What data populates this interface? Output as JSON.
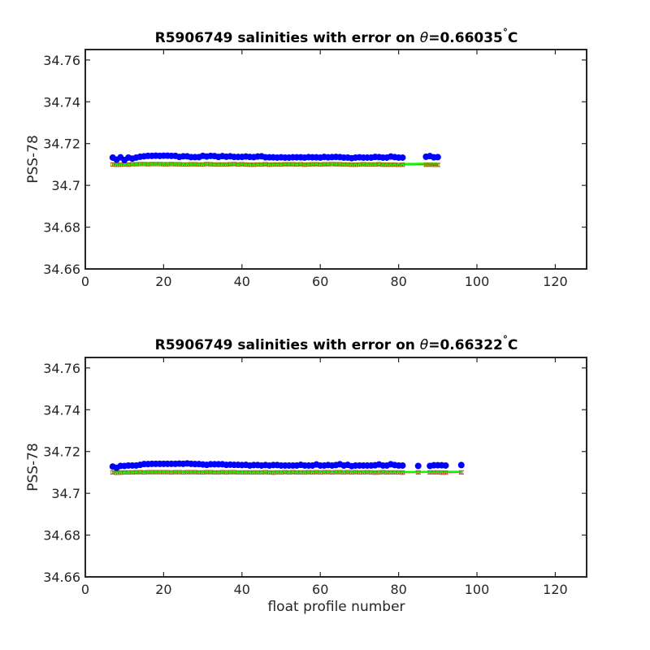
{
  "chart_data": [
    {
      "type": "scatter",
      "title_prefix": "R5906749 salinities with error on ",
      "title_theta": "θ",
      "title_value": "=0.66035",
      "title_degree": "°",
      "title_unit": "C",
      "xlabel": "",
      "ylabel": "PSS-78",
      "xlim": [
        0,
        128
      ],
      "ylim": [
        34.66,
        34.765
      ],
      "xticks": [
        "0",
        "20",
        "40",
        "60",
        "80",
        "100",
        "120"
      ],
      "yticks": [
        "34.66",
        "34.68",
        "34.7",
        "34.72",
        "34.74",
        "34.76"
      ],
      "grid": false,
      "colors": {
        "float": "#0000ff",
        "mapped": "#ff0000",
        "fit": "#00ff00",
        "errorbar": "#aa0000"
      },
      "float_x": [
        7,
        8,
        9,
        10,
        11,
        12,
        13,
        14,
        15,
        16,
        17,
        18,
        19,
        20,
        21,
        22,
        23,
        24,
        25,
        26,
        27,
        28,
        29,
        30,
        31,
        32,
        33,
        34,
        35,
        36,
        37,
        38,
        39,
        40,
        41,
        42,
        43,
        44,
        45,
        46,
        47,
        48,
        49,
        50,
        51,
        52,
        53,
        54,
        55,
        56,
        57,
        58,
        59,
        60,
        61,
        62,
        63,
        64,
        65,
        66,
        67,
        68,
        69,
        70,
        71,
        72,
        73,
        74,
        75,
        76,
        77,
        78,
        79,
        80,
        81,
        87,
        88,
        89,
        90
      ],
      "float_y": [
        34.7133,
        34.7123,
        34.7134,
        34.7121,
        34.7133,
        34.7128,
        34.7133,
        34.7137,
        34.7139,
        34.7141,
        34.7141,
        34.7142,
        34.7141,
        34.7142,
        34.7142,
        34.7141,
        34.7141,
        34.7136,
        34.7139,
        34.7139,
        34.7135,
        34.7135,
        34.7135,
        34.7141,
        34.7138,
        34.7141,
        34.714,
        34.7136,
        34.714,
        34.7137,
        34.7139,
        34.7136,
        34.7136,
        34.7136,
        34.7138,
        34.7136,
        34.7135,
        34.7138,
        34.7139,
        34.7134,
        34.7134,
        34.7134,
        34.7133,
        34.7134,
        34.7133,
        34.7133,
        34.7134,
        34.7134,
        34.7134,
        34.7133,
        34.7135,
        34.7134,
        34.7134,
        34.7133,
        34.7136,
        34.7134,
        34.7135,
        34.7136,
        34.7135,
        34.7133,
        34.7133,
        34.713,
        34.7133,
        34.7134,
        34.7133,
        34.7133,
        34.7133,
        34.7136,
        34.7135,
        34.7133,
        34.7133,
        34.7138,
        34.7135,
        34.7133,
        34.7133,
        34.7137,
        34.714,
        34.7134,
        34.7135
      ],
      "mapped_x": [
        7,
        8,
        9,
        10,
        11,
        12,
        13,
        14,
        15,
        16,
        17,
        18,
        19,
        20,
        21,
        22,
        23,
        24,
        25,
        26,
        27,
        28,
        29,
        30,
        31,
        32,
        33,
        34,
        35,
        36,
        37,
        38,
        39,
        40,
        41,
        42,
        43,
        44,
        45,
        46,
        47,
        48,
        49,
        50,
        51,
        52,
        53,
        54,
        55,
        56,
        57,
        58,
        59,
        60,
        61,
        62,
        63,
        64,
        65,
        66,
        67,
        68,
        69,
        70,
        71,
        72,
        73,
        74,
        75,
        76,
        77,
        78,
        79,
        80,
        81,
        87,
        88,
        89,
        90
      ],
      "mapped_y": [
        34.71,
        34.7098,
        34.7099,
        34.71,
        34.7099,
        34.7101,
        34.7101,
        34.7102,
        34.7102,
        34.7101,
        34.7102,
        34.7102,
        34.7102,
        34.7101,
        34.7101,
        34.7102,
        34.7101,
        34.7101,
        34.71,
        34.71,
        34.7101,
        34.7101,
        34.71,
        34.71,
        34.7102,
        34.7101,
        34.71,
        34.71,
        34.71,
        34.71,
        34.7101,
        34.7102,
        34.71,
        34.7101,
        34.71,
        34.7099,
        34.7099,
        34.71,
        34.71,
        34.7101,
        34.7099,
        34.71,
        34.71,
        34.71,
        34.7101,
        34.7101,
        34.7101,
        34.71,
        34.7101,
        34.7099,
        34.71,
        34.7101,
        34.7101,
        34.71,
        34.7101,
        34.7101,
        34.7102,
        34.7101,
        34.7101,
        34.71,
        34.71,
        34.7099,
        34.7099,
        34.71,
        34.7101,
        34.71,
        34.71,
        34.71,
        34.7101,
        34.7099,
        34.7099,
        34.7099,
        34.7099,
        34.7098,
        34.7099,
        34.7099,
        34.7099,
        34.7098,
        34.7098
      ],
      "mapped_err": 0.0008,
      "fit_x": [
        7,
        20,
        40,
        60,
        81,
        87,
        90
      ],
      "fit_y": [
        34.7101,
        34.7103,
        34.7101,
        34.7101,
        34.7102,
        34.7104,
        34.7104
      ]
    },
    {
      "type": "scatter",
      "title_prefix": "R5906749 salinities with error on ",
      "title_theta": "θ",
      "title_value": "=0.66322",
      "title_degree": "°",
      "title_unit": "C",
      "xlabel": "float profile number",
      "ylabel": "PSS-78",
      "xlim": [
        0,
        128
      ],
      "ylim": [
        34.66,
        34.765
      ],
      "xticks": [
        "0",
        "20",
        "40",
        "60",
        "80",
        "100",
        "120"
      ],
      "yticks": [
        "34.66",
        "34.68",
        "34.7",
        "34.72",
        "34.74",
        "34.76"
      ],
      "grid": false,
      "colors": {
        "float": "#0000ff",
        "mapped": "#ff0000",
        "fit": "#00ff00",
        "errorbar": "#aa0000"
      },
      "float_x": [
        7,
        8,
        9,
        10,
        11,
        12,
        13,
        14,
        15,
        16,
        17,
        18,
        19,
        20,
        21,
        22,
        23,
        24,
        25,
        26,
        27,
        28,
        29,
        30,
        31,
        32,
        33,
        34,
        35,
        36,
        37,
        38,
        39,
        40,
        41,
        42,
        43,
        44,
        45,
        46,
        47,
        48,
        49,
        50,
        51,
        52,
        53,
        54,
        55,
        56,
        57,
        58,
        59,
        60,
        61,
        62,
        63,
        64,
        65,
        66,
        67,
        68,
        69,
        70,
        71,
        72,
        73,
        74,
        75,
        76,
        77,
        78,
        79,
        80,
        81,
        85,
        88,
        89,
        90,
        91,
        92,
        96
      ],
      "float_y": [
        34.7128,
        34.7122,
        34.7131,
        34.7131,
        34.7133,
        34.7133,
        34.7133,
        34.7136,
        34.714,
        34.714,
        34.7141,
        34.7141,
        34.7141,
        34.7141,
        34.7141,
        34.7141,
        34.7141,
        34.7142,
        34.7141,
        34.7143,
        34.7141,
        34.714,
        34.714,
        34.7138,
        34.7136,
        34.7139,
        34.7139,
        34.7139,
        34.7139,
        34.7136,
        34.7137,
        34.7136,
        34.7136,
        34.7135,
        34.7136,
        34.7133,
        34.7135,
        34.7135,
        34.7133,
        34.7135,
        34.7133,
        34.7135,
        34.7135,
        34.7133,
        34.7133,
        34.7133,
        34.7133,
        34.7133,
        34.7136,
        34.7133,
        34.7133,
        34.7133,
        34.7138,
        34.7133,
        34.7133,
        34.7135,
        34.7133,
        34.7135,
        34.7139,
        34.7133,
        34.7136,
        34.713,
        34.7133,
        34.7133,
        34.7133,
        34.7133,
        34.7133,
        34.7134,
        34.7138,
        34.7133,
        34.7133,
        34.7139,
        34.7135,
        34.7133,
        34.7133,
        34.7131,
        34.7131,
        34.7134,
        34.7134,
        34.7134,
        34.7133,
        34.7135
      ],
      "mapped_x": [
        7,
        8,
        9,
        10,
        11,
        12,
        13,
        14,
        15,
        16,
        17,
        18,
        19,
        20,
        21,
        22,
        23,
        24,
        25,
        26,
        27,
        28,
        29,
        30,
        31,
        32,
        33,
        34,
        35,
        36,
        37,
        38,
        39,
        40,
        41,
        42,
        43,
        44,
        45,
        46,
        47,
        48,
        49,
        50,
        51,
        52,
        53,
        54,
        55,
        56,
        57,
        58,
        59,
        60,
        61,
        62,
        63,
        64,
        65,
        66,
        67,
        68,
        69,
        70,
        71,
        72,
        73,
        74,
        75,
        76,
        77,
        78,
        79,
        80,
        81,
        85,
        88,
        89,
        90,
        91,
        92,
        96
      ],
      "mapped_y": [
        34.71,
        34.7098,
        34.7099,
        34.71,
        34.71,
        34.71,
        34.7101,
        34.7101,
        34.71,
        34.7101,
        34.7101,
        34.7101,
        34.7101,
        34.7101,
        34.7101,
        34.71,
        34.7101,
        34.7101,
        34.71,
        34.7101,
        34.7101,
        34.7101,
        34.71,
        34.71,
        34.7101,
        34.7101,
        34.71,
        34.71,
        34.7101,
        34.71,
        34.7101,
        34.7101,
        34.71,
        34.71,
        34.71,
        34.71,
        34.71,
        34.71,
        34.71,
        34.7101,
        34.71,
        34.7099,
        34.71,
        34.71,
        34.7101,
        34.71,
        34.7101,
        34.71,
        34.71,
        34.71,
        34.7101,
        34.71,
        34.7101,
        34.71,
        34.7101,
        34.7101,
        34.71,
        34.7101,
        34.7101,
        34.71,
        34.7101,
        34.71,
        34.7101,
        34.71,
        34.71,
        34.7101,
        34.71,
        34.7099,
        34.71,
        34.7101,
        34.71,
        34.71,
        34.71,
        34.71,
        34.7099,
        34.71,
        34.71,
        34.71,
        34.71,
        34.7099,
        34.7099,
        34.71
      ],
      "mapped_err": 0.0008,
      "fit_x": [
        7,
        20,
        40,
        60,
        81,
        92,
        96
      ],
      "fit_y": [
        34.71,
        34.7102,
        34.7101,
        34.7102,
        34.7102,
        34.7103,
        34.7103
      ]
    }
  ]
}
